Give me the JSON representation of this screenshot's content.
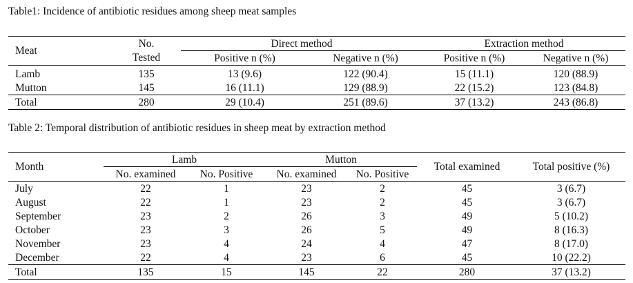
{
  "table1": {
    "caption": "Table1: Incidence of antibiotic residues among sheep meat samples",
    "header": {
      "meat": "Meat",
      "no_tested_line1": "No.",
      "no_tested_line2": "Tested",
      "direct": "Direct method",
      "extraction": "Extraction method",
      "positive": "Positive n (%)",
      "negative": "Negative n (%)"
    },
    "rows": [
      {
        "meat": "Lamb",
        "tested": "135",
        "dp": "13 (9.6)",
        "dn": "122 (90.4)",
        "ep": "15 (11.1)",
        "en": "120 (88.9)"
      },
      {
        "meat": "Mutton",
        "tested": "145",
        "dp": "16 (11.1)",
        "dn": "129 (88.9)",
        "ep": "22 (15.2)",
        "en": "123 (84.8)"
      },
      {
        "meat": "Total",
        "tested": "280",
        "dp": "29 (10.4)",
        "dn": "251 (89.6)",
        "ep": "37 (13.2)",
        "en": "243 (86.8)"
      }
    ]
  },
  "table2": {
    "caption": "Table 2: Temporal distribution of antibiotic residues in sheep meat by extraction method",
    "header": {
      "month": "Month",
      "lamb": "Lamb",
      "mutton": "Mutton",
      "no_examined": "No. examined",
      "no_positive": "No. Positive",
      "total_examined": "Total examined",
      "total_positive": "Total positive (%)"
    },
    "rows": [
      {
        "month": "July",
        "le": "22",
        "lp": "1",
        "me": "23",
        "mp": "2",
        "te": "45",
        "tp": "3 (6.7)"
      },
      {
        "month": "August",
        "le": "22",
        "lp": "1",
        "me": "23",
        "mp": "2",
        "te": "45",
        "tp": "3 (6.7)"
      },
      {
        "month": "September",
        "le": "23",
        "lp": "2",
        "me": "26",
        "mp": "3",
        "te": "49",
        "tp": "5 (10.2)"
      },
      {
        "month": "October",
        "le": "23",
        "lp": "3",
        "me": "26",
        "mp": "5",
        "te": "49",
        "tp": "8 (16.3)"
      },
      {
        "month": "November",
        "le": "23",
        "lp": "4",
        "me": "24",
        "mp": "4",
        "te": "47",
        "tp": "8 (17.0)"
      },
      {
        "month": "December",
        "le": "22",
        "lp": "4",
        "me": "23",
        "mp": "6",
        "te": "45",
        "tp": "10 (22.2)"
      },
      {
        "month": "Total",
        "le": "135",
        "lp": "15",
        "me": "145",
        "mp": "22",
        "te": "280",
        "tp": "37 (13.2)"
      }
    ]
  }
}
